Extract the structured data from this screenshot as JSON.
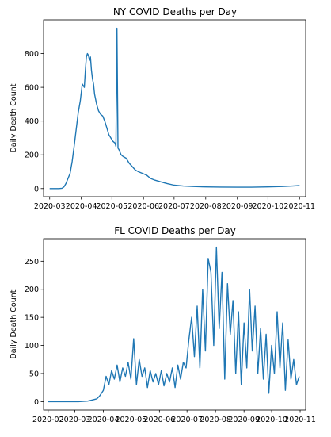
{
  "chart_data": [
    {
      "type": "line",
      "title": "NY COVID Deaths per Day",
      "xlabel": "",
      "ylabel": "Daily Death Count",
      "color": "#1f77b4",
      "x_range": [
        "2020-02-24",
        "2020-11-07"
      ],
      "ylim": [
        -48,
        1000
      ],
      "x_ticks": [
        "2020-03",
        "2020-04",
        "2020-05",
        "2020-06",
        "2020-07",
        "2020-08",
        "2020-09",
        "2020-10",
        "2020-11"
      ],
      "y_ticks": [
        0,
        200,
        400,
        600,
        800
      ],
      "x": [
        "2020-03-01",
        "2020-03-10",
        "2020-03-13",
        "2020-03-15",
        "2020-03-17",
        "2020-03-19",
        "2020-03-21",
        "2020-03-23",
        "2020-03-25",
        "2020-03-27",
        "2020-03-29",
        "2020-03-31",
        "2020-04-02",
        "2020-04-04",
        "2020-04-05",
        "2020-04-06",
        "2020-04-07",
        "2020-04-08",
        "2020-04-09",
        "2020-04-10",
        "2020-04-11",
        "2020-04-12",
        "2020-04-13",
        "2020-04-14",
        "2020-04-16",
        "2020-04-18",
        "2020-04-20",
        "2020-04-22",
        "2020-04-24",
        "2020-04-26",
        "2020-04-28",
        "2020-04-30",
        "2020-05-02",
        "2020-05-04",
        "2020-05-05",
        "2020-05-06",
        "2020-05-07",
        "2020-05-08",
        "2020-05-10",
        "2020-05-12",
        "2020-05-15",
        "2020-05-18",
        "2020-05-21",
        "2020-05-24",
        "2020-05-27",
        "2020-05-31",
        "2020-06-04",
        "2020-06-08",
        "2020-06-12",
        "2020-06-18",
        "2020-06-24",
        "2020-07-01",
        "2020-07-10",
        "2020-07-20",
        "2020-08-01",
        "2020-08-15",
        "2020-09-01",
        "2020-09-15",
        "2020-10-01",
        "2020-10-15",
        "2020-10-25",
        "2020-11-01"
      ],
      "values": [
        0,
        0,
        2,
        10,
        30,
        60,
        90,
        160,
        250,
        350,
        450,
        520,
        620,
        600,
        700,
        780,
        800,
        790,
        760,
        780,
        700,
        650,
        620,
        560,
        500,
        460,
        440,
        430,
        400,
        360,
        320,
        300,
        280,
        270,
        250,
        950,
        240,
        230,
        200,
        190,
        180,
        150,
        130,
        110,
        100,
        90,
        80,
        60,
        50,
        40,
        30,
        20,
        15,
        12,
        10,
        9,
        8,
        8,
        10,
        12,
        15,
        18
      ]
    },
    {
      "type": "line",
      "title": "FL COVID Deaths per Day",
      "xlabel": "",
      "ylabel": "Daily Death Count",
      "color": "#1f77b4",
      "x_range": [
        "2020-01-27",
        "2020-11-07"
      ],
      "ylim": [
        -15,
        290
      ],
      "x_ticks": [
        "2020-02",
        "2020-03",
        "2020-04",
        "2020-05",
        "2020-06",
        "2020-07",
        "2020-08",
        "2020-09",
        "2020-10",
        "2020-11"
      ],
      "y_ticks": [
        0,
        50,
        100,
        150,
        200,
        250
      ],
      "x": [
        "2020-02-01",
        "2020-03-05",
        "2020-03-15",
        "2020-03-20",
        "2020-03-25",
        "2020-03-28",
        "2020-04-01",
        "2020-04-04",
        "2020-04-07",
        "2020-04-10",
        "2020-04-13",
        "2020-04-16",
        "2020-04-19",
        "2020-04-22",
        "2020-04-25",
        "2020-04-28",
        "2020-05-01",
        "2020-05-04",
        "2020-05-07",
        "2020-05-10",
        "2020-05-13",
        "2020-05-16",
        "2020-05-19",
        "2020-05-22",
        "2020-05-25",
        "2020-05-28",
        "2020-05-31",
        "2020-06-03",
        "2020-06-06",
        "2020-06-09",
        "2020-06-12",
        "2020-06-15",
        "2020-06-18",
        "2020-06-21",
        "2020-06-24",
        "2020-06-27",
        "2020-06-30",
        "2020-07-03",
        "2020-07-06",
        "2020-07-09",
        "2020-07-12",
        "2020-07-15",
        "2020-07-18",
        "2020-07-21",
        "2020-07-24",
        "2020-07-27",
        "2020-07-30",
        "2020-08-02",
        "2020-08-05",
        "2020-08-08",
        "2020-08-11",
        "2020-08-14",
        "2020-08-17",
        "2020-08-20",
        "2020-08-23",
        "2020-08-26",
        "2020-08-29",
        "2020-09-01",
        "2020-09-04",
        "2020-09-07",
        "2020-09-10",
        "2020-09-13",
        "2020-09-16",
        "2020-09-19",
        "2020-09-22",
        "2020-09-25",
        "2020-09-28",
        "2020-10-01",
        "2020-10-04",
        "2020-10-07",
        "2020-10-10",
        "2020-10-13",
        "2020-10-16",
        "2020-10-19",
        "2020-10-22",
        "2020-10-25",
        "2020-10-28",
        "2020-10-31"
      ],
      "values": [
        0,
        0,
        1,
        3,
        5,
        10,
        20,
        45,
        30,
        55,
        40,
        65,
        35,
        60,
        45,
        70,
        40,
        112,
        30,
        75,
        45,
        60,
        25,
        55,
        35,
        50,
        30,
        55,
        28,
        50,
        35,
        60,
        25,
        65,
        40,
        70,
        60,
        110,
        150,
        80,
        170,
        60,
        200,
        90,
        255,
        230,
        100,
        275,
        130,
        230,
        40,
        210,
        120,
        180,
        50,
        160,
        30,
        140,
        60,
        200,
        90,
        170,
        50,
        130,
        40,
        120,
        15,
        100,
        50,
        160,
        60,
        140,
        20,
        110,
        40,
        75,
        30,
        45
      ]
    }
  ]
}
